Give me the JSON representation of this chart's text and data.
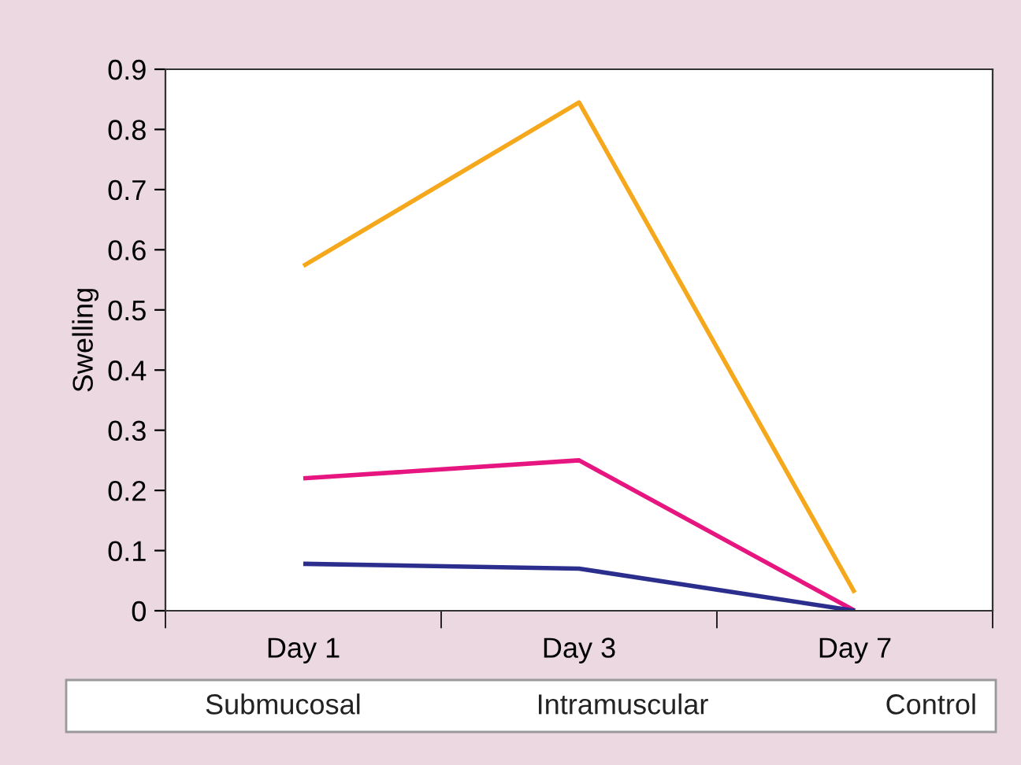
{
  "chart_data": {
    "type": "line",
    "ylabel": "Swelling",
    "categories": [
      "Day 1",
      "Day 3",
      "Day 7"
    ],
    "series": [
      {
        "color": "#f5a81c",
        "values": [
          0.573,
          0.845,
          0.03
        ]
      },
      {
        "color": "#e6157f",
        "values": [
          0.22,
          0.25,
          0
        ]
      },
      {
        "color": "#2b2e8c",
        "values": [
          0.078,
          0.07,
          0
        ]
      }
    ],
    "ylim": [
      0,
      0.9
    ],
    "yticks": [
      0,
      0.1,
      0.2,
      0.3,
      0.4,
      0.5,
      0.6,
      0.7,
      0.8,
      0.9
    ],
    "grid": false,
    "marker": "none",
    "line_style": "solid",
    "annotations": [
      "Submucosal",
      "Intramuscular",
      "Control"
    ]
  }
}
